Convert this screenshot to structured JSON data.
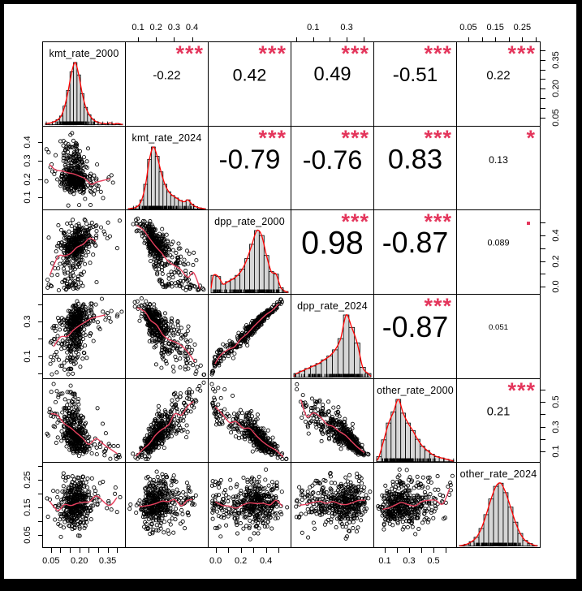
{
  "figure": {
    "kind": "pairs-correlation-matrix",
    "background": "#ffffff",
    "frame_color": "#000000"
  },
  "colors": {
    "histogram_fill": "#d6d6d6",
    "histogram_border": "#000000",
    "density_line": "#ff0000",
    "smooth_line": "#e8415f",
    "star_color": "#e4365c",
    "point_color": "#000000",
    "text_color": "#000000",
    "tick_color": "#000000"
  },
  "chart_data": {
    "type": "scatter",
    "subtype": "scatterplot-matrix",
    "title": "",
    "n_points_per_panel": 420,
    "panels": {
      "diagonal": "histogram with red density curve and rug",
      "upper": "pearson correlation with significance stars",
      "lower": "scatter with red smooth line"
    },
    "variables": [
      {
        "name": "kmt_rate_2000",
        "min": 0.025,
        "max": 0.425,
        "tick_values": [
          0.05,
          0.1,
          0.15,
          0.2,
          0.25,
          0.3,
          0.35,
          0.4
        ],
        "tick_labels": [
          "0.05",
          "",
          "",
          "0.20",
          "",
          "",
          "0.35",
          ""
        ],
        "hist": [
          0.02,
          0.03,
          0.05,
          0.08,
          0.14,
          0.3,
          0.55,
          0.85,
          1.0,
          0.8,
          0.5,
          0.28,
          0.16,
          0.09,
          0.05,
          0.03,
          0.02,
          0.015,
          0.03,
          0.01,
          0.02,
          0.01
        ]
      },
      {
        "name": "kmt_rate_2024",
        "min": 0.05,
        "max": 0.47,
        "tick_values": [
          0.1,
          0.2,
          0.3,
          0.4
        ],
        "tick_labels": [
          "0.1",
          "0.2",
          "0.3",
          "0.4"
        ],
        "hist": [
          0.01,
          0.02,
          0.05,
          0.15,
          0.4,
          0.8,
          1.0,
          0.85,
          0.6,
          0.4,
          0.28,
          0.22,
          0.18,
          0.14,
          0.12,
          0.15,
          0.08,
          0.04,
          0.02,
          0.01
        ]
      },
      {
        "name": "dpp_rate_2000",
        "min": -0.03,
        "max": 0.57,
        "tick_values": [
          0.0,
          0.1,
          0.2,
          0.3,
          0.4,
          0.5
        ],
        "tick_labels": [
          "0.0",
          "",
          "0.2",
          "",
          "0.4",
          ""
        ],
        "hist": [
          0.28,
          0.26,
          0.14,
          0.18,
          0.22,
          0.28,
          0.38,
          0.55,
          0.78,
          1.0,
          0.92,
          0.6,
          0.34,
          0.3,
          0.08,
          0.02
        ]
      },
      {
        "name": "dpp_rate_2024",
        "min": -0.01,
        "max": 0.44,
        "tick_values": [
          0.0,
          0.1,
          0.2,
          0.3,
          0.4
        ],
        "tick_labels": [
          "",
          "0.1",
          "",
          "0.3",
          ""
        ],
        "hist": [
          0.06,
          0.1,
          0.14,
          0.18,
          0.22,
          0.28,
          0.34,
          0.44,
          0.62,
          1.0,
          0.8,
          0.55,
          0.16,
          0.06
        ]
      },
      {
        "name": "other_rate_2000",
        "min": 0.04,
        "max": 0.66,
        "tick_values": [
          0.1,
          0.2,
          0.3,
          0.4,
          0.5,
          0.6
        ],
        "tick_labels": [
          "0.1",
          "",
          "0.3",
          "",
          "0.5",
          ""
        ],
        "hist": [
          0.08,
          0.35,
          0.62,
          0.8,
          1.0,
          0.78,
          0.62,
          0.5,
          0.36,
          0.25,
          0.18,
          0.12,
          0.08,
          0.06,
          0.04,
          0.02
        ]
      },
      {
        "name": "other_rate_2024",
        "min": 0.02,
        "max": 0.3,
        "tick_values": [
          0.05,
          0.1,
          0.15,
          0.2,
          0.25,
          0.3
        ],
        "tick_labels": [
          "0.05",
          "",
          "0.15",
          "",
          "0.25",
          ""
        ],
        "hist": [
          0.01,
          0.03,
          0.07,
          0.14,
          0.28,
          0.5,
          0.75,
          0.95,
          1.0,
          0.85,
          0.62,
          0.38,
          0.2,
          0.09,
          0.04,
          0.01
        ]
      }
    ],
    "correlations": [
      {
        "row": 0,
        "col": 1,
        "r": -0.22,
        "label": "-0.22",
        "stars": "***"
      },
      {
        "row": 0,
        "col": 2,
        "r": 0.42,
        "label": "0.42",
        "stars": "***"
      },
      {
        "row": 0,
        "col": 3,
        "r": 0.49,
        "label": "0.49",
        "stars": "***"
      },
      {
        "row": 0,
        "col": 4,
        "r": -0.51,
        "label": "-0.51",
        "stars": "***"
      },
      {
        "row": 0,
        "col": 5,
        "r": 0.22,
        "label": "0.22",
        "stars": "***"
      },
      {
        "row": 1,
        "col": 2,
        "r": -0.79,
        "label": "-0.79",
        "stars": "***"
      },
      {
        "row": 1,
        "col": 3,
        "r": -0.76,
        "label": "-0.76",
        "stars": "***"
      },
      {
        "row": 1,
        "col": 4,
        "r": 0.83,
        "label": "0.83",
        "stars": "***"
      },
      {
        "row": 1,
        "col": 5,
        "r": 0.13,
        "label": "0.13",
        "stars": "*"
      },
      {
        "row": 2,
        "col": 3,
        "r": 0.98,
        "label": "0.98",
        "stars": "***"
      },
      {
        "row": 2,
        "col": 4,
        "r": -0.87,
        "label": "-0.87",
        "stars": "***"
      },
      {
        "row": 2,
        "col": 5,
        "r": 0.089,
        "label": "0.089",
        "stars": "."
      },
      {
        "row": 3,
        "col": 4,
        "r": -0.87,
        "label": "-0.87",
        "stars": "***"
      },
      {
        "row": 3,
        "col": 5,
        "r": 0.051,
        "label": "0.051",
        "stars": ""
      },
      {
        "row": 4,
        "col": 5,
        "r": 0.21,
        "label": "0.21",
        "stars": "***"
      }
    ],
    "axes": {
      "top_axis_cols": [
        1,
        3,
        5
      ],
      "bottom_axis_cols": [
        0,
        2,
        4
      ],
      "left_axis_rows": [
        1,
        3,
        5
      ],
      "right_axis_rows": [
        0,
        2,
        4
      ],
      "grid": false,
      "legend": "none"
    }
  }
}
